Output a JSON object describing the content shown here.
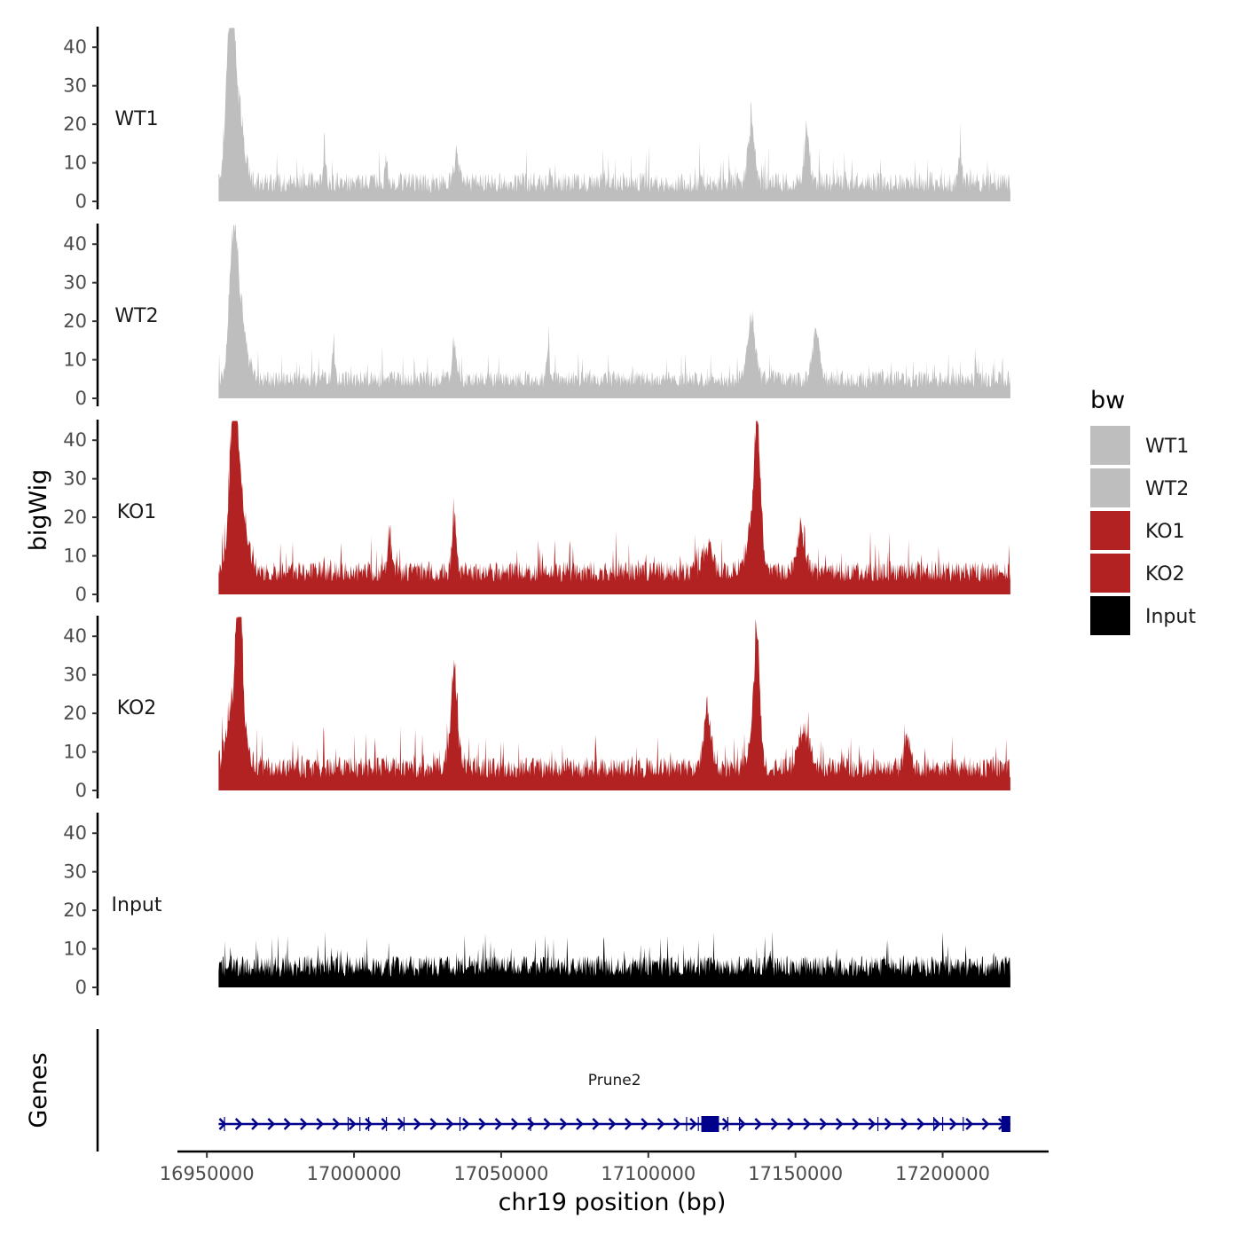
{
  "chart_data": {
    "type": "area",
    "title": "",
    "ylabel": "bigWig",
    "xlabel": "chr19 position (bp)",
    "x_range": [
      16954000,
      17223000
    ],
    "xlim": [
      16940000,
      17236000
    ],
    "ylim": [
      0,
      45
    ],
    "yticks": [
      0,
      10,
      20,
      30,
      40
    ],
    "xticks": [
      16950000,
      17000000,
      17050000,
      17100000,
      17150000,
      17200000
    ],
    "xtick_labels": [
      "16950000",
      "17000000",
      "17050000",
      "17100000",
      "17150000",
      "17200000"
    ],
    "legend": {
      "title": "bw",
      "position": "right",
      "entries": [
        {
          "label": "WT1",
          "color": "#BEBEBE"
        },
        {
          "label": "WT2",
          "color": "#BEBEBE"
        },
        {
          "label": "KO1",
          "color": "#B22222"
        },
        {
          "label": "KO2",
          "color": "#B22222"
        },
        {
          "label": "Input",
          "color": "#000000"
        }
      ]
    },
    "series": [
      {
        "name": "WT1",
        "color": "#BEBEBE",
        "baseline": 5,
        "noise": 5,
        "peaks": [
          [
            16958000,
            42,
            1300
          ],
          [
            16960000,
            24,
            2200
          ],
          [
            17135000,
            20,
            1000
          ],
          [
            17154000,
            14,
            900
          ],
          [
            16990000,
            11,
            400
          ],
          [
            17035000,
            10,
            800
          ],
          [
            17011000,
            9,
            500
          ],
          [
            17206000,
            10,
            500
          ]
        ]
      },
      {
        "name": "WT2",
        "color": "#BEBEBE",
        "baseline": 5,
        "noise": 4,
        "peaks": [
          [
            16959000,
            33,
            1300
          ],
          [
            16961000,
            20,
            2200
          ],
          [
            17135000,
            18,
            1300
          ],
          [
            17157000,
            13,
            1300
          ],
          [
            17034000,
            12,
            600
          ],
          [
            16993000,
            10,
            400
          ],
          [
            17066000,
            9,
            500
          ]
        ]
      },
      {
        "name": "KO1",
        "color": "#B22222",
        "baseline": 6,
        "noise": 5,
        "peaks": [
          [
            16959000,
            38,
            1300
          ],
          [
            16961000,
            22,
            2500
          ],
          [
            17137000,
            34,
            900
          ],
          [
            17136000,
            16,
            2200
          ],
          [
            17034000,
            16,
            700
          ],
          [
            17012000,
            13,
            600
          ],
          [
            17152000,
            12,
            1500
          ],
          [
            17120000,
            8,
            1500
          ]
        ]
      },
      {
        "name": "KO2",
        "color": "#B22222",
        "baseline": 6,
        "noise": 5,
        "peaks": [
          [
            16961000,
            39,
            900
          ],
          [
            16960000,
            23,
            2600
          ],
          [
            17137000,
            26,
            900
          ],
          [
            17136000,
            14,
            1600
          ],
          [
            17034000,
            20,
            800
          ],
          [
            17034000,
            10,
            1800
          ],
          [
            17120000,
            16,
            1300
          ],
          [
            17153000,
            12,
            2000
          ],
          [
            17188000,
            9,
            1000
          ]
        ]
      },
      {
        "name": "Input",
        "color": "#000000",
        "baseline": 5.5,
        "noise": 5,
        "peaks": [
          [
            17200000,
            5,
            300
          ],
          [
            17141000,
            4,
            300
          ],
          [
            16984000,
            3,
            300
          ],
          [
            17122000,
            3,
            300
          ]
        ]
      }
    ],
    "genes_track": {
      "label": "Genes",
      "color": "#00008B",
      "gene": {
        "name": "Prune2",
        "start": 16954000,
        "end": 17223000,
        "strand": "+",
        "exons": [
          [
            17118000,
            17124000
          ],
          [
            17220000,
            17223000
          ]
        ],
        "minor_exons": [
          16956000,
          16998000,
          17002000,
          17005000,
          17011000,
          17017000,
          17036000,
          17060000,
          17113000,
          17117000,
          17127000,
          17131000,
          17178000,
          17197000,
          17200000,
          17207000
        ]
      }
    }
  }
}
